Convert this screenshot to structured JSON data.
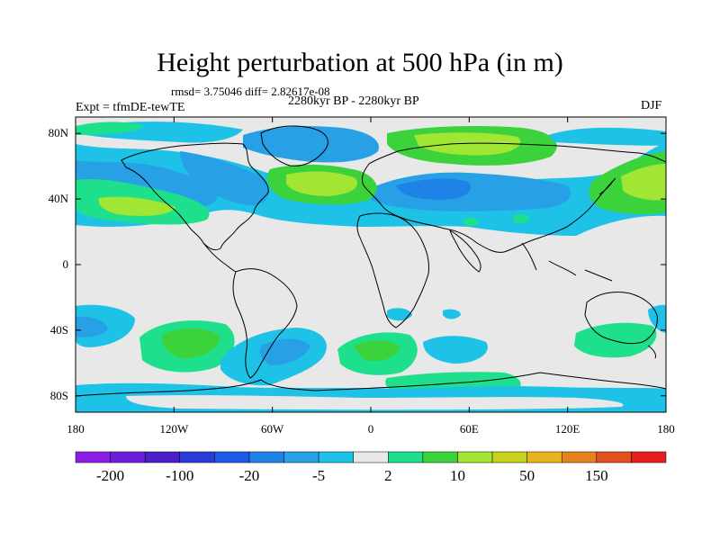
{
  "title": "Height perturbation at 500 hPa (in m)",
  "stats": "rmsd= 3.75046 diff= 2.82617e-08",
  "experiment": "Expt = tfmDE-tewTE",
  "period": "2280kyr BP - 2280kyr BP",
  "season": "DJF",
  "map": {
    "projection": "cylindrical equidistant",
    "lon_range": [
      -180,
      180
    ],
    "lat_range": [
      -90,
      90
    ],
    "lat_labels": [
      {
        "lat": 80,
        "text": "80N"
      },
      {
        "lat": 40,
        "text": "40N"
      },
      {
        "lat": 0,
        "text": "0"
      },
      {
        "lat": -40,
        "text": "40S"
      },
      {
        "lat": -80,
        "text": "80S"
      }
    ],
    "lon_labels": [
      {
        "lon": -180,
        "text": "180"
      },
      {
        "lon": -120,
        "text": "120W"
      },
      {
        "lon": -60,
        "text": "60W"
      },
      {
        "lon": 0,
        "text": "0"
      },
      {
        "lon": 60,
        "text": "60E"
      },
      {
        "lon": 120,
        "text": "120E"
      },
      {
        "lon": 180,
        "text": "180"
      }
    ]
  },
  "colorbar": {
    "colors": [
      "#8c1ee6",
      "#6e1ed8",
      "#4b1ec8",
      "#2a3ad8",
      "#1e5ae6",
      "#1e82e6",
      "#28a0e6",
      "#1ec2e6",
      "#e8e8e8",
      "#1ee08c",
      "#3cd23c",
      "#a0e632",
      "#c8d21e",
      "#e6b41e",
      "#e6821e",
      "#e6501e",
      "#e61e1e"
    ],
    "labels": [
      {
        "index": 1,
        "text": "-200"
      },
      {
        "index": 3,
        "text": "-100"
      },
      {
        "index": 5,
        "text": "-20"
      },
      {
        "index": 7,
        "text": "-5"
      },
      {
        "index": 9,
        "text": "2"
      },
      {
        "index": 11,
        "text": "10"
      },
      {
        "index": 13,
        "text": "50"
      },
      {
        "index": 15,
        "text": "150"
      }
    ]
  },
  "field": {
    "unit": "m",
    "anomalies": [
      {
        "region": "north-pacific-negative",
        "lon": -130,
        "lat": 50,
        "value": -20
      },
      {
        "region": "aleutian-positive",
        "lon": -150,
        "lat": 40,
        "value": 10
      },
      {
        "region": "north-america-negative",
        "lon": -95,
        "lat": 50,
        "value": -20
      },
      {
        "region": "north-atlantic-positive",
        "lon": -40,
        "lat": 44,
        "value": 10
      },
      {
        "region": "greenland-negative",
        "lon": -40,
        "lat": 72,
        "value": -10
      },
      {
        "region": "eurasia-negative",
        "lon": 60,
        "lat": 42,
        "value": -20
      },
      {
        "region": "siberia-positive",
        "lon": 95,
        "lat": 72,
        "value": 10
      },
      {
        "region": "west-pacific-positive",
        "lon": 160,
        "lat": 40,
        "value": 10
      },
      {
        "region": "south-pacific-positive",
        "lon": -110,
        "lat": -42,
        "value": 10
      },
      {
        "region": "south-atlantic-negative",
        "lon": -45,
        "lat": -50,
        "value": -10
      },
      {
        "region": "south-indian-positive",
        "lon": 8,
        "lat": -45,
        "value": 10
      },
      {
        "region": "south-indian-east-positive",
        "lon": 90,
        "lat": -58,
        "value": 5
      },
      {
        "region": "australia-positive",
        "lon": 150,
        "lat": -42,
        "value": 5
      }
    ]
  }
}
